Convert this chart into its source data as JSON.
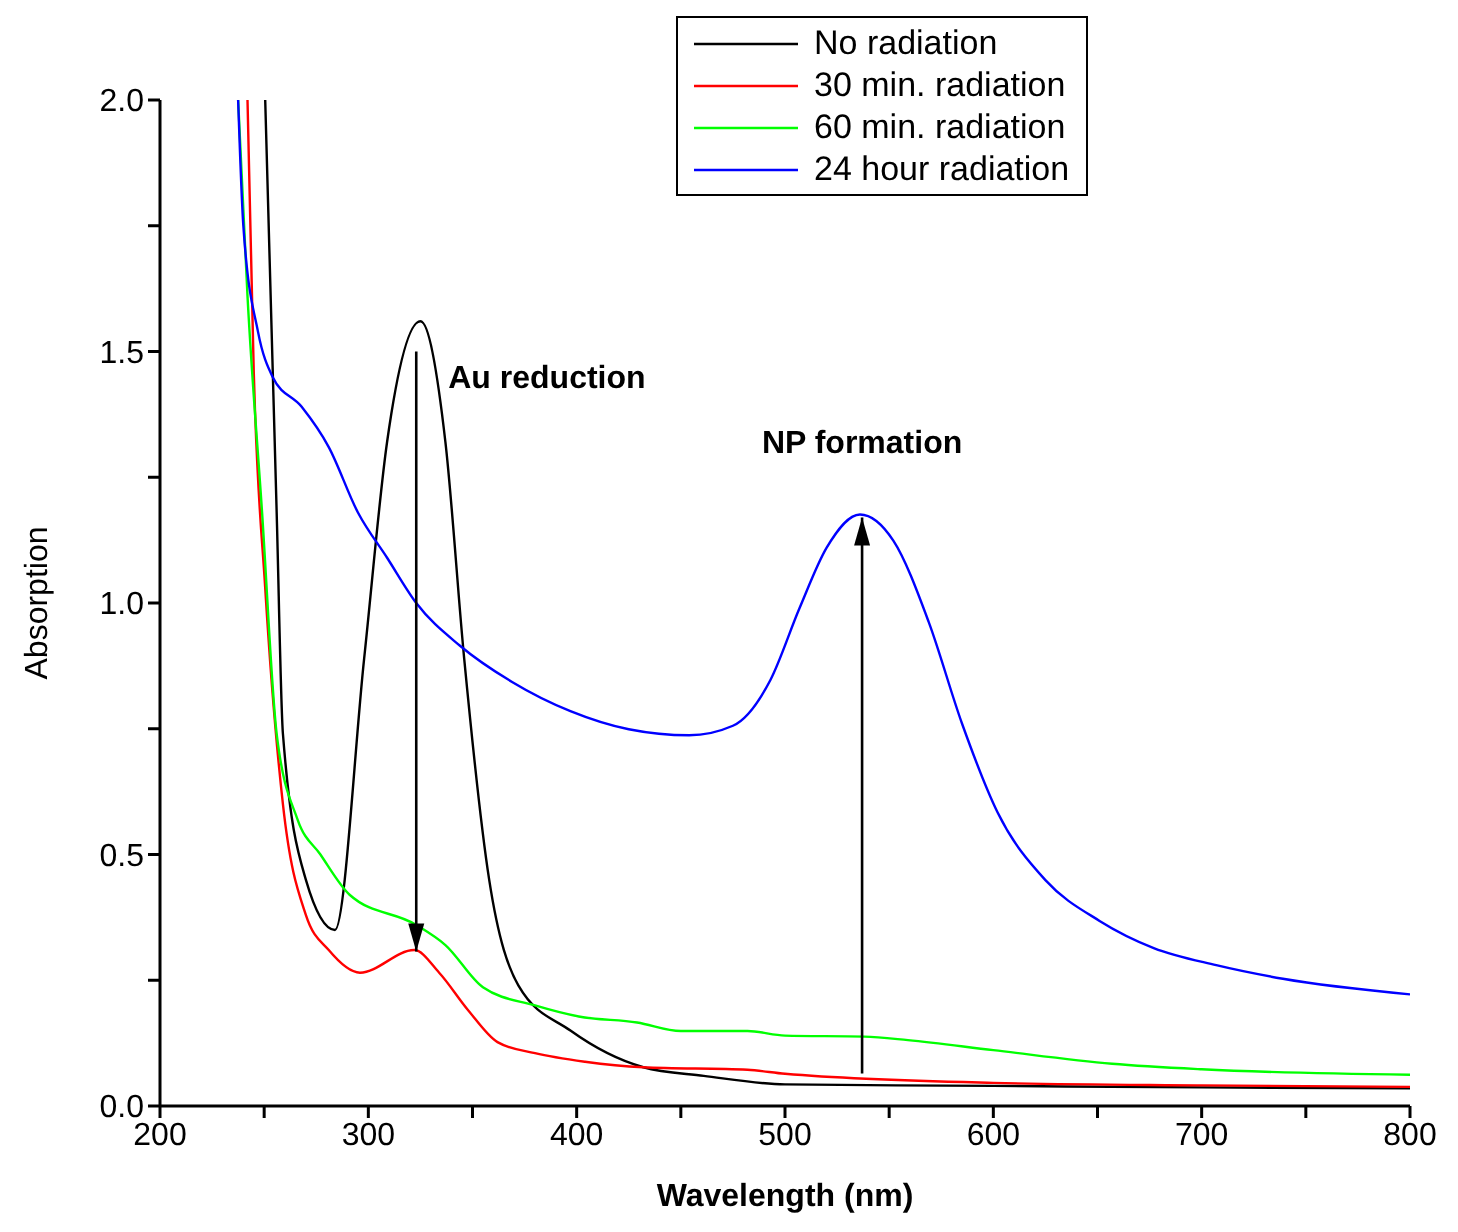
{
  "chart_data": {
    "type": "line",
    "xlabel": "Wavelength (nm)",
    "ylabel": "Absorption",
    "xlim": [
      200,
      800
    ],
    "ylim": [
      0,
      2
    ],
    "xticks": [
      200,
      {
        "value": 250,
        "label": null
      },
      300,
      {
        "value": 350,
        "label": null
      },
      400,
      {
        "value": 450,
        "label": null
      },
      500,
      {
        "value": 550,
        "label": null
      },
      600,
      {
        "value": 650,
        "label": null
      },
      700,
      {
        "value": 750,
        "label": null
      },
      800
    ],
    "yticks": [
      {
        "value": 0,
        "label": "0.0"
      },
      {
        "value": 0.25,
        "label": null
      },
      {
        "value": 0.5,
        "label": "0.5"
      },
      {
        "value": 0.75,
        "label": null
      },
      {
        "value": 1,
        "label": "1.0"
      },
      {
        "value": 1.25,
        "label": null
      },
      {
        "value": 1.5,
        "label": "1.5"
      },
      {
        "value": 1.75,
        "label": null
      },
      {
        "value": 2,
        "label": "2.0"
      }
    ],
    "grid": false,
    "legend": "top right",
    "marker": "none",
    "line_style": "solid",
    "annotations": [
      {
        "text": "Au reduction",
        "x": 323,
        "y": 1.5
      },
      {
        "text": "NP formation",
        "x": 537,
        "y": 1.17
      }
    ],
    "series": [
      {
        "name": "No radiation",
        "color": "#000000",
        "x": [
          250.5,
          256,
          259,
          270,
          284,
          298,
          309,
          325,
          337,
          346,
          358,
          372,
          397,
          432,
          461,
          500,
          600,
          700,
          800
        ],
        "values": [
          2.0,
          1.18,
          0.74,
          0.45,
          0.35,
          0.89,
          1.32,
          1.56,
          1.32,
          0.89,
          0.45,
          0.24,
          0.15,
          0.077,
          0.06,
          0.043,
          0.04,
          0.037,
          0.035
        ]
      },
      {
        "name": "30 min. radiation",
        "color": "#ff0000",
        "x": [
          242,
          245,
          250.5,
          259,
          270,
          281,
          296,
          322,
          334,
          348,
          362,
          380,
          404,
          432,
          482,
          500,
          600,
          700,
          800
        ],
        "values": [
          2.0,
          1.46,
          1.03,
          0.6,
          0.38,
          0.31,
          0.265,
          0.31,
          0.265,
          0.19,
          0.127,
          0.105,
          0.088,
          0.077,
          0.072,
          0.064,
          0.046,
          0.041,
          0.038
        ]
      },
      {
        "name": "60 min. radiation",
        "color": "#00ff00",
        "x": [
          237.5,
          242,
          249,
          256,
          266,
          277,
          291,
          323,
          337,
          355,
          380,
          401,
          429,
          450,
          482,
          500,
          538,
          559,
          600,
          657,
          700,
          800
        ],
        "values": [
          2.0,
          1.61,
          1.18,
          0.74,
          0.57,
          0.5,
          0.42,
          0.36,
          0.32,
          0.236,
          0.2,
          0.178,
          0.166,
          0.149,
          0.149,
          0.14,
          0.138,
          0.131,
          0.111,
          0.084,
          0.073,
          0.062
        ]
      },
      {
        "name": "24 hour radiation",
        "color": "#0000ff",
        "x": [
          237.5,
          240,
          247,
          254,
          268,
          281,
          295,
          309,
          323,
          344,
          369,
          397,
          425,
          454,
          475,
          493,
          507,
          520,
          536,
          552,
          569,
          585,
          602,
          625,
          651,
          677,
          707,
          739,
          800
        ],
        "values": [
          2.0,
          1.75,
          1.54,
          1.45,
          1.39,
          1.31,
          1.18,
          1.09,
          1.0,
          0.915,
          0.843,
          0.785,
          0.749,
          0.737,
          0.756,
          0.847,
          0.99,
          1.11,
          1.176,
          1.124,
          0.962,
          0.76,
          0.584,
          0.449,
          0.368,
          0.314,
          0.28,
          0.253,
          0.222
        ]
      }
    ]
  }
}
